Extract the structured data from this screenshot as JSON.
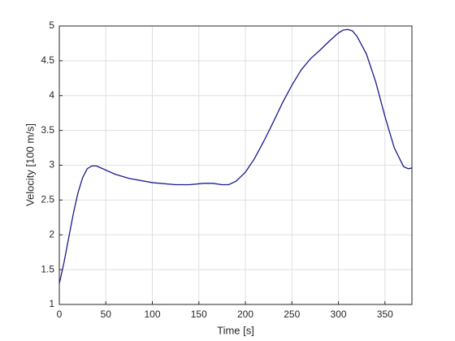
{
  "chart_data": {
    "type": "line",
    "x_label": "Time [s]",
    "y_label": "Velocity [100 m/s]",
    "x": [
      0,
      5,
      10,
      15,
      20,
      25,
      30,
      35,
      40,
      50,
      60,
      75,
      100,
      125,
      140,
      155,
      165,
      175,
      182,
      190,
      200,
      210,
      220,
      230,
      240,
      250,
      260,
      270,
      280,
      290,
      300,
      305,
      310,
      315,
      320,
      330,
      340,
      350,
      360,
      370,
      375,
      379
    ],
    "series": [
      {
        "color": "#1a1a8c",
        "values": [
          1.3,
          1.6,
          1.95,
          2.3,
          2.6,
          2.82,
          2.95,
          2.99,
          2.99,
          2.93,
          2.87,
          2.81,
          2.75,
          2.72,
          2.72,
          2.74,
          2.74,
          2.72,
          2.72,
          2.77,
          2.9,
          3.1,
          3.35,
          3.62,
          3.9,
          4.15,
          4.37,
          4.53,
          4.65,
          4.78,
          4.9,
          4.94,
          4.95,
          4.93,
          4.85,
          4.6,
          4.2,
          3.7,
          3.25,
          2.98,
          2.95,
          2.96
        ]
      }
    ],
    "xlim": [
      0,
      379
    ],
    "xticks": [
      0,
      50,
      100,
      150,
      200,
      250,
      300,
      350
    ],
    "ylim": [
      1,
      5
    ],
    "yticks": [
      1,
      1.5,
      2,
      2.5,
      3,
      3.5,
      4,
      4.5,
      5
    ],
    "grid": true
  }
}
